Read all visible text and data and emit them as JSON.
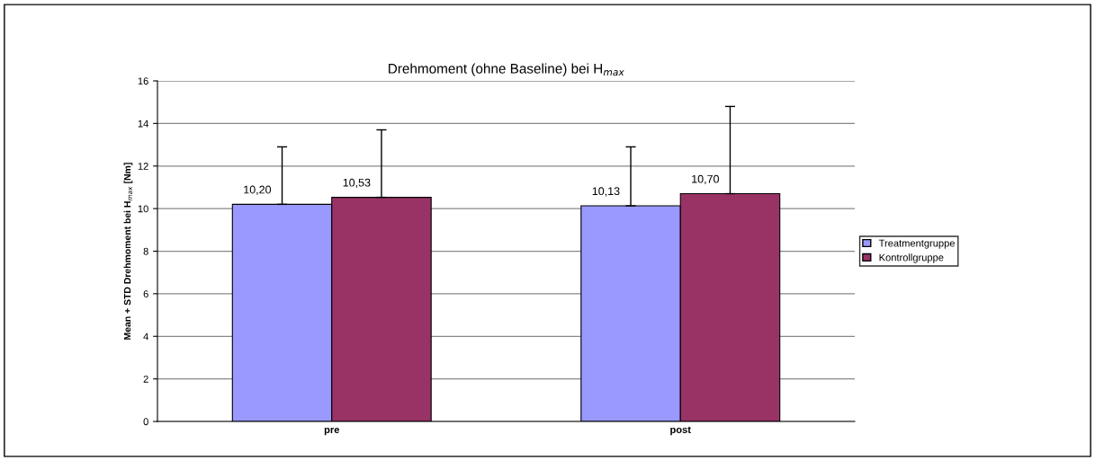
{
  "chart_data": {
    "type": "bar",
    "title": "Drehmoment (ohne Baseline) bei H$_{max}$",
    "ylabel": "Mean + STD Drehmoment bei H$_{max}$ [Nm]",
    "categories": [
      "pre",
      "post"
    ],
    "series": [
      {
        "name": "Treatmentgruppe",
        "color": "#9999ff",
        "values": [
          10.2,
          10.13
        ],
        "value_labels": [
          "10,20",
          "10,13"
        ],
        "errors": [
          [
            10.2,
            12.9
          ],
          [
            10.13,
            12.9
          ]
        ]
      },
      {
        "name": "Kontrollgruppe",
        "color": "#993366",
        "values": [
          10.53,
          10.7
        ],
        "value_labels": [
          "10,53",
          "10,70"
        ],
        "errors": [
          [
            10.53,
            13.7
          ],
          [
            10.7,
            14.8
          ]
        ]
      }
    ],
    "ylim": [
      0,
      16
    ],
    "yticks": [
      0,
      2,
      4,
      6,
      8,
      10,
      12,
      14,
      16
    ],
    "grid": "y",
    "legend": "right"
  }
}
